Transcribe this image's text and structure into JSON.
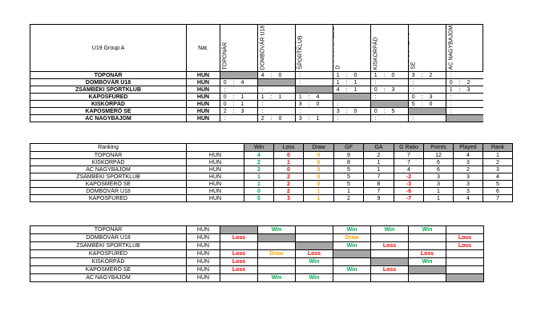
{
  "group": {
    "title": "U19 Group A",
    "nat_header": "Nat.",
    "columns": [
      "TOPONÁR",
      "DOMBÓVÁR U18",
      "ZSÁMBÉKI SPORTKLUB",
      "KAPOSFÜREDE D",
      "KISKORPÁD",
      "KAPOSMÉR Ő SE",
      "AC NAGYBAJOM"
    ],
    "teams": [
      "TOPONÁR",
      "DOMBÓVÁR U18",
      "ZSÁMBÉKI SPORTKLUB",
      "KAPOSFÜRED",
      "KISKORPÁD",
      "KAPOSMÉRŐ SE",
      "AC NAGYBAJOM"
    ],
    "nat": "HUN",
    "scores": [
      [
        null,
        [
          "4",
          "0"
        ],
        [
          ":",
          " "
        ],
        [
          "1",
          "0"
        ],
        [
          "1",
          "0"
        ],
        [
          "3",
          "2"
        ],
        [
          ":",
          " "
        ]
      ],
      [
        [
          "0",
          "4"
        ],
        null,
        [
          ":",
          " "
        ],
        [
          "1",
          "1"
        ],
        [
          ":",
          " "
        ],
        [
          ":",
          " "
        ],
        [
          "0",
          "2"
        ]
      ],
      [
        [
          ":",
          " "
        ],
        [
          ":",
          " "
        ],
        null,
        [
          "4",
          "1"
        ],
        [
          "0",
          "3"
        ],
        [
          ":",
          " "
        ],
        [
          "1",
          "3"
        ]
      ],
      [
        [
          "0",
          "1"
        ],
        [
          "1",
          "1"
        ],
        [
          "1",
          "4"
        ],
        null,
        [
          ":",
          " "
        ],
        [
          "0",
          "3"
        ],
        [
          ":",
          " "
        ]
      ],
      [
        [
          "0",
          "1"
        ],
        [
          ":",
          " "
        ],
        [
          "3",
          "0"
        ],
        [
          ":",
          " "
        ],
        null,
        [
          "5",
          "0"
        ],
        [
          ":",
          " "
        ]
      ],
      [
        [
          "2",
          "3"
        ],
        [
          ":",
          " "
        ],
        [
          ":",
          " "
        ],
        [
          "3",
          "0"
        ],
        [
          "0",
          "5"
        ],
        null,
        [
          ":",
          " "
        ]
      ],
      [
        [
          ":",
          " "
        ],
        [
          "2",
          "0"
        ],
        [
          "3",
          "1"
        ],
        [
          ":",
          " "
        ],
        [
          ":",
          " "
        ],
        [
          ":",
          " "
        ],
        null
      ]
    ]
  },
  "ranking": {
    "headers": [
      "Ranking",
      "",
      "Win",
      "Loss",
      "Draw",
      "GF",
      "GA",
      "G Ratio",
      "Points",
      "Played",
      "Rank"
    ],
    "rows": [
      {
        "team": "TOPONÁR",
        "nat": "HUN",
        "win": "4",
        "loss": "0",
        "draw": "0",
        "gf": "9",
        "ga": "2",
        "ratio": "7",
        "points": "12",
        "played": "4",
        "rank": "1"
      },
      {
        "team": "KISKORPÁD",
        "nat": "HUN",
        "win": "2",
        "loss": "1",
        "draw": "0",
        "gf": "8",
        "ga": "1",
        "ratio": "7",
        "points": "6",
        "played": "3",
        "rank": "2"
      },
      {
        "team": "AC NAGYBAJOM",
        "nat": "HUN",
        "win": "2",
        "loss": "0",
        "draw": "0",
        "gf": "5",
        "ga": "1",
        "ratio": "4",
        "points": "6",
        "played": "2",
        "rank": "3"
      },
      {
        "team": "ZSÁMBÉKI SPORTKLUB",
        "nat": "HUN",
        "win": "1",
        "loss": "2",
        "draw": "0",
        "gf": "5",
        "ga": "7",
        "ratio": "-2",
        "points": "3",
        "played": "3",
        "rank": "4"
      },
      {
        "team": "KAPOSMÉRŐ SE",
        "nat": "HUN",
        "win": "1",
        "loss": "2",
        "draw": "0",
        "gf": "5",
        "ga": "8",
        "ratio": "-3",
        "points": "3",
        "played": "3",
        "rank": "5"
      },
      {
        "team": "DOMBÓVÁR U18",
        "nat": "HUN",
        "win": "0",
        "loss": "2",
        "draw": "1",
        "gf": "1",
        "ga": "7",
        "ratio": "-6",
        "points": "1",
        "played": "3",
        "rank": "6"
      },
      {
        "team": "KAPOSFÜRED",
        "nat": "HUN",
        "win": "0",
        "loss": "3",
        "draw": "1",
        "gf": "2",
        "ga": "9",
        "ratio": "-7",
        "points": "1",
        "played": "4",
        "rank": "7"
      }
    ]
  },
  "results": {
    "rows": [
      {
        "team": "TOPONÁR",
        "nat": "HUN",
        "cells": [
          "",
          "Win",
          "",
          "Win",
          "Win",
          "Win",
          ""
        ]
      },
      {
        "team": "DOMBÓVÁR U18",
        "nat": "HUN",
        "cells": [
          "Loss",
          "",
          "",
          "Draw",
          "",
          "",
          "Loss"
        ]
      },
      {
        "team": "ZSÁMBÉKI SPORTKLUB",
        "nat": "HUN",
        "cells": [
          "",
          "",
          "",
          "Win",
          "Loss",
          "",
          "Loss"
        ]
      },
      {
        "team": "KAPOSFÜRED",
        "nat": "HUN",
        "cells": [
          "Loss",
          "Draw",
          "Loss",
          "",
          "",
          "Loss",
          ""
        ]
      },
      {
        "team": "KISKORPÁD",
        "nat": "HUN",
        "cells": [
          "Loss",
          "",
          "Win",
          "",
          "",
          "Win",
          ""
        ]
      },
      {
        "team": "KAPOSMÉRŐ SE",
        "nat": "HUN",
        "cells": [
          "Loss",
          "",
          "",
          "Win",
          "Loss",
          "",
          ""
        ]
      },
      {
        "team": "AC NAGYBAJOM",
        "nat": "HUN",
        "cells": [
          "",
          "Win",
          "Win",
          "",
          "",
          "",
          ""
        ]
      }
    ]
  }
}
